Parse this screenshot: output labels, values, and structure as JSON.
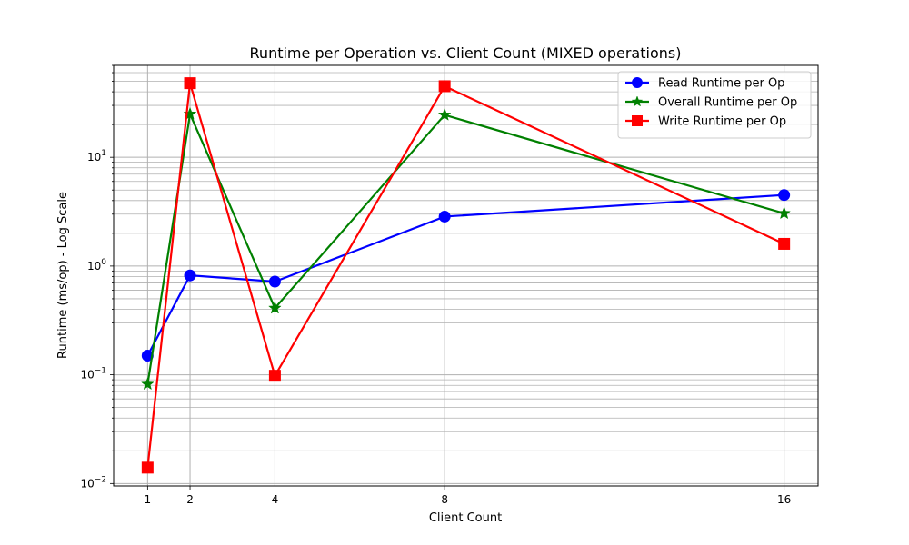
{
  "chart_data": {
    "type": "line",
    "title": "Runtime per Operation vs. Client Count (MIXED operations)",
    "xlabel": "Client Count",
    "ylabel": "Runtime (ms/op) - Log Scale",
    "yscale": "log",
    "ylim": [
      0.0095,
      70
    ],
    "xlim": [
      0.2,
      16.8
    ],
    "x": [
      1,
      2,
      4,
      8,
      16
    ],
    "x_tick_labels": [
      "1",
      "2",
      "4",
      "8",
      "16"
    ],
    "y_ticks": [
      {
        "base": "10",
        "exp": "−2"
      },
      {
        "base": "10",
        "exp": "−1"
      },
      {
        "base": "10",
        "exp": "0"
      },
      {
        "base": "10",
        "exp": "1"
      }
    ],
    "grid": true,
    "legend_position": "upper-right",
    "series": [
      {
        "name": "Read Runtime per Op",
        "color": "#0000ff",
        "marker": "circle",
        "values": [
          0.15,
          0.82,
          0.72,
          2.85,
          4.5
        ]
      },
      {
        "name": "Overall Runtime per Op",
        "color": "#008000",
        "marker": "star",
        "values": [
          0.082,
          25,
          0.41,
          24.5,
          3.05
        ]
      },
      {
        "name": "Write Runtime per Op",
        "color": "#ff0000",
        "marker": "square",
        "values": [
          0.014,
          48,
          0.098,
          45,
          1.6
        ]
      }
    ]
  }
}
